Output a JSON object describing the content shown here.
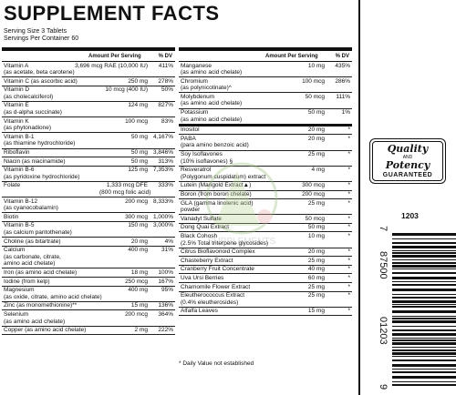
{
  "title": "SUPPLEMENT FACTS",
  "serving_size": "Serving Size 3 Tablets",
  "servings_per_container": "Servings Per Container 60",
  "header": {
    "amount": "Amount Per Serving",
    "dv": "% DV"
  },
  "left_rows": [
    {
      "name": "Vitamin A",
      "sub": "(as acetate, beta carotene)",
      "amount": "3,696 mcg RAE (10,000 IU)",
      "dv": "411%"
    },
    {
      "name": "Vitamin C (as ascorbic acid)",
      "amount": "250 mg",
      "dv": "278%"
    },
    {
      "name": "Vitamin D",
      "sub": "(as cholecalciferol)",
      "amount": "10 mcg (400 IU)",
      "dv": "50%"
    },
    {
      "name": "Vitamin E",
      "sub": "(as d-alpha succinate)",
      "amount": "124 mg",
      "dv": "827%"
    },
    {
      "name": "Vitamin K",
      "sub": "(as phytonadione)",
      "amount": "100 mcg",
      "dv": "83%"
    },
    {
      "name": "Vitamin B-1",
      "sub": "(as thiamine hydrochloride)",
      "amount": "50 mg",
      "dv": "4,167%"
    },
    {
      "name": "Riboflavin",
      "amount": "50 mg",
      "dv": "3,846%"
    },
    {
      "name": "Niacin (as niacinamide)",
      "amount": "50 mg",
      "dv": "313%"
    },
    {
      "name": "Vitamin B-6",
      "sub": "(as pyridoxine hydrochloride)",
      "amount": "125 mg",
      "dv": "7,353%"
    },
    {
      "name": "Folate",
      "amount": "1,333 mcg DFE",
      "amount2": "(800 mcg folic acid)",
      "dv": "333%"
    },
    {
      "name": "Vitamin B-12",
      "sub": "(as cyanocobalamin)",
      "amount": "200 mcg",
      "dv": "8,333%"
    },
    {
      "name": "Biotin",
      "amount": "300 mcg",
      "dv": "1,000%"
    },
    {
      "name": "Vitamin B-5",
      "sub": "(as calcium pantothenate)",
      "amount": "150 mg",
      "dv": "3,000%"
    },
    {
      "name": "Choline (as bitartrate)",
      "amount": "20 mg",
      "dv": "4%"
    },
    {
      "name": "Calcium",
      "sub": "(as carbonate, citrate,",
      "sub2": "amino acid chelate)",
      "amount": "400 mg",
      "dv": "31%"
    },
    {
      "name": "Iron (as amino acid chelate)",
      "amount": "18 mg",
      "dv": "100%"
    },
    {
      "name": "Iodine (from kelp)",
      "amount": "250 mcg",
      "dv": "167%"
    },
    {
      "name": "Magnesium",
      "sub": "(as oxide, citrate, amino acid chelate)",
      "amount": "400 mg",
      "dv": "95%"
    },
    {
      "name": "Zinc (as monomethionine)**",
      "amount": "15 mg",
      "dv": "136%"
    },
    {
      "name": "Selenium",
      "sub": "(as amino acid chelate)",
      "amount": "200 mcg",
      "dv": "364%"
    },
    {
      "name": "Copper (as amino acid chelate)",
      "amount": "2 mg",
      "dv": "222%"
    }
  ],
  "right_rows": [
    {
      "name": "Manganese",
      "sub": "(as amino acid chelate)",
      "amount": "10 mg",
      "dv": "435%"
    },
    {
      "name": "Chromium",
      "sub": "(as polynicotinate)^",
      "amount": "100 mcg",
      "dv": "286%"
    },
    {
      "name": "Molybdenum",
      "sub": "(as amino acid chelate)",
      "amount": "50 mcg",
      "dv": "111%"
    },
    {
      "name": "Potassium",
      "sub": "(as amino acid chelate)",
      "amount": "50 mg",
      "dv": "1%"
    },
    {
      "name": "Inositol",
      "amount": "20 mg",
      "dv": "*"
    },
    {
      "name": "PABA",
      "sub": "(para amino benzoic acid)",
      "amount": "20 mg",
      "dv": "*"
    },
    {
      "name": "Soy Isoflavones",
      "sub": "(10% isoflavones) §",
      "amount": "25 mg",
      "dv": "*"
    },
    {
      "name": "Resveratrol",
      "sub": "(Polygonum cuspidatum) extract",
      "amount": "4 mg",
      "dv": "*"
    },
    {
      "name": "Lutein (Marigold Extract▲)",
      "amount": "300 mcg",
      "dv": "*"
    },
    {
      "name": "Boron (from boron chelate)",
      "amount": "200 mcg",
      "dv": "*"
    },
    {
      "name": "GLA (gamma linolenic acid)",
      "sub": "powder",
      "amount": "25 mg",
      "dv": "*"
    },
    {
      "name": "Vanadyl Sulfate",
      "amount": "50 mcg",
      "dv": "*"
    },
    {
      "name": "Dong Quai Extract",
      "amount": "50 mg",
      "dv": "*"
    },
    {
      "name": "Black Cohosh",
      "sub": "(2.5% Total triterpene glycosides)",
      "amount": "10 mg",
      "dv": "*"
    },
    {
      "name": "Citrus Bioflavonoid Complex",
      "amount": "20 mg",
      "dv": "*"
    },
    {
      "name": "Chasteberry Extract",
      "amount": "25 mg",
      "dv": "*"
    },
    {
      "name": "Cranberry Fruit Concentrate",
      "amount": "40 mg",
      "dv": "*"
    },
    {
      "name": "Uva Ursi Berries",
      "amount": "60 mg",
      "dv": "*"
    },
    {
      "name": "Chamomile Flower Extract",
      "amount": "25 mg",
      "dv": "*"
    },
    {
      "name": "Eleutherococcus Extract",
      "sub": "(0.4% eleutherosides)",
      "amount": "25 mg",
      "dv": "*"
    },
    {
      "name": "Alfalfa Leaves",
      "amount": "15 mg",
      "dv": "*"
    }
  ],
  "footnote": "* Daily Value not established",
  "seal": {
    "line1": "Quality",
    "line2": "AND",
    "line3": "Potency",
    "line4": "GUARANTEED"
  },
  "lot": "1203",
  "barcode_digits": [
    "7",
    "87500",
    "01203",
    "9"
  ],
  "watermark_text": "SUPPLEMENTS"
}
